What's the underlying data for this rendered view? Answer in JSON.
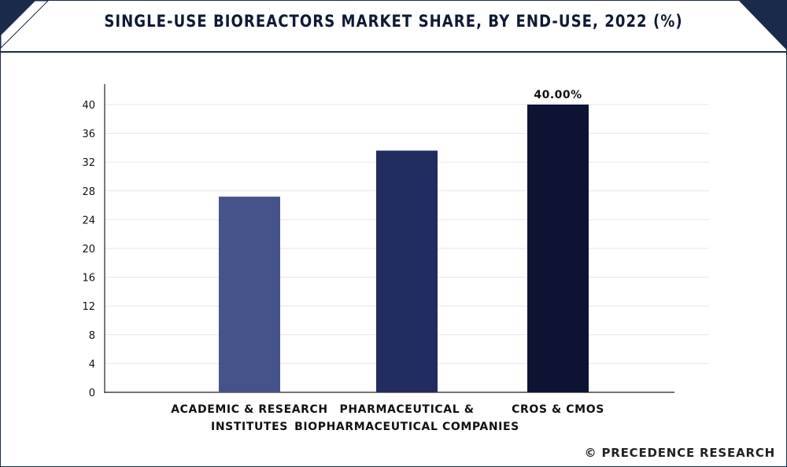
{
  "title": "SINGLE-USE BIOREACTORS MARKET SHARE, BY END-USE, 2022 (%)",
  "credit": "© PRECEDENCE RESEARCH",
  "colors": {
    "frame": "#1a2a4a",
    "corner": "#1a2a4a",
    "grid": "#e6e6e6",
    "axis": "#222222"
  },
  "chart_data": {
    "type": "bar",
    "title": "SINGLE-USE BIOREACTORS MARKET SHARE, BY END-USE, 2022 (%)",
    "xlabel": "",
    "ylabel": "",
    "categories": [
      [
        "ACADEMIC & RESEARCH",
        "INSTITUTES"
      ],
      [
        "PHARMACEUTICAL &",
        "BIOPHARMACEUTICAL COMPANIES"
      ],
      [
        "CROS & CMOS"
      ]
    ],
    "values": [
      27.2,
      33.6,
      40.0
    ],
    "bar_colors": [
      "#46538a",
      "#232c5f",
      "#0d1433"
    ],
    "data_labels": [
      "",
      "",
      "40.00%"
    ],
    "ylim": [
      0,
      40
    ],
    "yticks": [
      0,
      4,
      8,
      12,
      16,
      20,
      24,
      28,
      32,
      36,
      40
    ],
    "grid": true,
    "legend": "none"
  }
}
